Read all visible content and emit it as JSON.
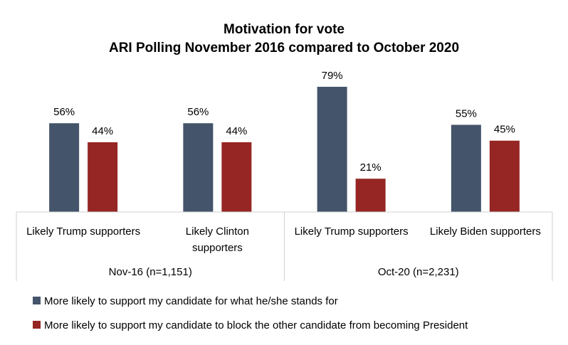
{
  "chart_data": {
    "type": "bar",
    "title": "Motivation for vote",
    "subtitle": "ARI Polling November 2016 compared to October 2020",
    "xlabel": "",
    "ylabel": "",
    "ylim": [
      0,
      100
    ],
    "grid": false,
    "legend_position": "bottom",
    "groups": [
      {
        "label": "Nov-16 (n=1,151)",
        "categories": [
          0,
          1
        ]
      },
      {
        "label": "Oct-20 (n=2,231)",
        "categories": [
          2,
          3
        ]
      }
    ],
    "categories": [
      [
        "Likely Trump supporters"
      ],
      [
        "Likely Clinton",
        "supporters"
      ],
      [
        "Likely Trump supporters"
      ],
      [
        "Likely Biden supporters"
      ]
    ],
    "series": [
      {
        "name": "More likely to support my candidate for what he/she stands for",
        "color": "#44546A",
        "values": [
          56,
          56,
          79,
          55
        ],
        "labels": [
          "56%",
          "56%",
          "79%",
          "55%"
        ]
      },
      {
        "name": "More likely to support my candidate to block the other candidate from becoming President",
        "color": "#952623",
        "values": [
          44,
          44,
          21,
          45
        ],
        "labels": [
          "44%",
          "44%",
          "21%",
          "45%"
        ]
      }
    ]
  }
}
